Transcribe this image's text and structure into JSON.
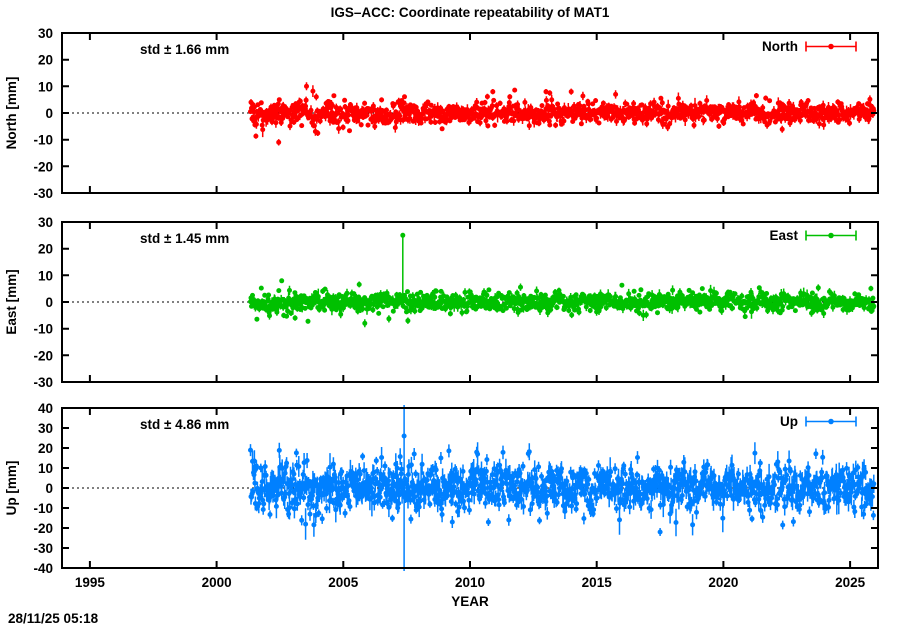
{
  "chart_data": {
    "type": "scatter",
    "title": "IGS–ACC: Coordinate repeatability of MAT1",
    "xlabel": "YEAR",
    "timestamp": "28/11/25 05:18",
    "x_range": [
      1993.9,
      2026.1
    ],
    "x_ticks": [
      1995,
      2000,
      2005,
      2010,
      2015,
      2020,
      2025
    ],
    "data_start_year": 2001.34,
    "data_end_year": 2025.95,
    "points_per_year": 52,
    "grid": "dotted zero line only, no full grid",
    "legend_position": "top-right inside each panel",
    "marker_style": "filled circle with vertical error bar",
    "panels": [
      {
        "name": "North",
        "ylabel": "North [mm]",
        "std_label": "std ± 1.66 mm",
        "std_mm": 1.66,
        "ylim": [
          -30,
          30
        ],
        "y_ticks": [
          30,
          20,
          10,
          0,
          -10,
          -20,
          -30
        ],
        "color": "#ff0000",
        "legend_label": "North",
        "seed": 11,
        "max_abs_mm": 9,
        "seasonal_amp_mm": 0.4,
        "outliers": [
          [
            2002.45,
            -11,
            1.2,
            1.2
          ],
          [
            2003.55,
            10,
            1.5,
            1.5
          ],
          [
            2010.9,
            8,
            1.0,
            1.0
          ],
          [
            2013.0,
            8,
            1.0,
            1.0
          ],
          [
            2013.15,
            7.5,
            1.0,
            1.0
          ],
          [
            2021.3,
            6.5,
            1.0,
            1.0
          ]
        ]
      },
      {
        "name": "East",
        "ylabel": "East [mm]",
        "std_label": "std ± 1.45 mm",
        "std_mm": 1.45,
        "ylim": [
          -30,
          30
        ],
        "y_ticks": [
          30,
          20,
          10,
          0,
          -10,
          -20,
          -30
        ],
        "color": "#00c000",
        "legend_label": "East",
        "seed": 22,
        "max_abs_mm": 8,
        "seasonal_amp_mm": 0.4,
        "outliers": [
          [
            2007.35,
            25,
            24.5,
            0.5
          ],
          [
            2005.85,
            -8,
            1.5,
            1.5
          ],
          [
            2007.55,
            -7,
            1.2,
            1.2
          ],
          [
            2003.1,
            -6,
            1.0,
            1.0
          ]
        ]
      },
      {
        "name": "Up",
        "ylabel": "Up [mm]",
        "std_label": "std ± 4.86 mm",
        "std_mm": 4.86,
        "ylim": [
          -40,
          40
        ],
        "y_ticks": [
          40,
          30,
          20,
          10,
          0,
          -10,
          -20,
          -30,
          -40
        ],
        "color": "#0080ff",
        "legend_label": "Up",
        "seed": 33,
        "max_abs_mm": 19,
        "seasonal_amp_mm": 1.6,
        "outliers": [
          [
            2007.4,
            26,
            90,
            90
          ],
          [
            2007.8,
            17,
            3,
            3
          ],
          [
            2008.85,
            15,
            3,
            3
          ],
          [
            2009.3,
            -17,
            3,
            3
          ],
          [
            2017.5,
            -22,
            2,
            2
          ]
        ]
      }
    ]
  }
}
